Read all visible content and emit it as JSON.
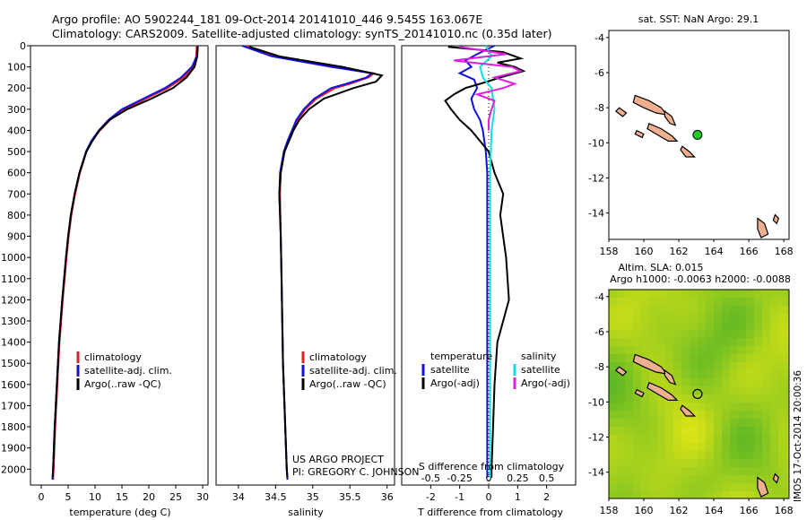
{
  "header": {
    "line1": "Argo profile: AO 5902244_181 09-Oct-2014 20141010_446 9.545S 163.067E",
    "line2": "Climatology: CARS2009. Satellite-adjusted climatology: synTS_20141010.nc (0.35d later)"
  },
  "footer": {
    "project": "US ARGO PROJECT",
    "pi": "PI: GREGORY C. JOHNSON"
  },
  "side_label": "IMOS 17-Oct-2014 20:00:36",
  "colors": {
    "clim": "#e02020",
    "sat": "#1010e0",
    "argo": "#000000",
    "sat_s": "#10e0e0",
    "argo_s": "#e020e0",
    "map_land": "#f0b090",
    "map_marker": "#22cc22"
  },
  "chart_data": [
    {
      "type": "line",
      "id": "temperature",
      "title": "",
      "xlabel": "temperature (deg C)",
      "ylabel": "",
      "xlim": [
        -2,
        31
      ],
      "ylim": [
        2075,
        0
      ],
      "xticks": [
        0,
        5,
        10,
        15,
        20,
        25,
        30
      ],
      "yticks": [
        0,
        100,
        200,
        300,
        400,
        500,
        600,
        700,
        800,
        900,
        1000,
        1100,
        1200,
        1300,
        1400,
        1500,
        1600,
        1700,
        1800,
        1900,
        2000
      ],
      "legend": [
        "climatology",
        "satellite-adj. clim.",
        "Argo(..raw -QC)"
      ],
      "series": [
        {
          "name": "climatology",
          "color": "#e02020",
          "y": [
            0,
            50,
            100,
            150,
            200,
            250,
            300,
            350,
            400,
            450,
            500,
            600,
            700,
            800,
            900,
            1000,
            1200,
            1400,
            1600,
            1800,
            2000,
            2050
          ],
          "x": [
            28.9,
            28.8,
            28.2,
            26.5,
            23.5,
            19.5,
            15.5,
            12.8,
            10.9,
            9.4,
            8.4,
            7.2,
            6.3,
            5.6,
            5.1,
            4.7,
            4.0,
            3.4,
            3.0,
            2.6,
            2.3,
            2.2
          ]
        },
        {
          "name": "satellite-adj. clim.",
          "color": "#1010e0",
          "y": [
            0,
            50,
            100,
            150,
            200,
            250,
            300,
            350,
            400,
            450,
            500,
            600,
            700,
            800,
            900,
            1000,
            1200,
            1400,
            1600,
            1800,
            2000,
            2050
          ],
          "x": [
            29.1,
            28.9,
            28.0,
            26.0,
            23.0,
            19.0,
            15.0,
            12.5,
            10.7,
            9.3,
            8.3,
            7.1,
            6.2,
            5.5,
            5.0,
            4.6,
            3.9,
            3.3,
            2.9,
            2.5,
            2.2,
            2.1
          ]
        },
        {
          "name": "Argo(..raw -QC)",
          "color": "#000000",
          "y": [
            5,
            50,
            100,
            150,
            200,
            250,
            300,
            350,
            400,
            450,
            500,
            600,
            700,
            800,
            900,
            1000,
            1200,
            1400,
            1600,
            1800,
            2000,
            2040
          ],
          "x": [
            29.1,
            29.0,
            28.5,
            27.0,
            24.5,
            20.5,
            16.0,
            12.7,
            10.8,
            9.5,
            8.4,
            7.1,
            6.2,
            5.5,
            5.0,
            4.6,
            3.9,
            3.3,
            2.9,
            2.5,
            2.2,
            2.1
          ]
        }
      ]
    },
    {
      "type": "line",
      "id": "salinity",
      "title": "",
      "xlabel": "salinity",
      "ylabel": "",
      "xlim": [
        33.7,
        36.1
      ],
      "ylim": [
        2075,
        0
      ],
      "xticks": [
        34,
        34.5,
        35,
        35.5,
        36
      ],
      "xtick_labels": [
        "34",
        "34.5",
        "35",
        "35.5",
        "36"
      ],
      "legend": [
        "climatology",
        "satellite-adj. clim.",
        "Argo(..raw -QC)"
      ],
      "series": [
        {
          "name": "climatology",
          "color": "#e02020",
          "y": [
            0,
            50,
            100,
            130,
            150,
            180,
            200,
            250,
            300,
            350,
            400,
            450,
            500,
            600,
            700,
            900,
            1100,
            1500,
            2000,
            2050
          ],
          "x": [
            34.1,
            34.5,
            35.3,
            35.82,
            35.75,
            35.5,
            35.3,
            35.05,
            34.9,
            34.8,
            34.74,
            34.68,
            34.62,
            34.57,
            34.56,
            34.57,
            34.58,
            34.6,
            34.65,
            34.66
          ]
        },
        {
          "name": "satellite-adj. clim.",
          "color": "#1010e0",
          "y": [
            0,
            50,
            100,
            130,
            150,
            180,
            200,
            250,
            300,
            350,
            400,
            450,
            500,
            600,
            700,
            900,
            1100,
            1500,
            2000,
            2050
          ],
          "x": [
            34.05,
            34.45,
            35.25,
            35.8,
            35.72,
            35.45,
            35.25,
            35.02,
            34.88,
            34.78,
            34.72,
            34.66,
            34.61,
            34.56,
            34.55,
            34.57,
            34.58,
            34.6,
            34.65,
            34.66
          ]
        },
        {
          "name": "Argo(..raw -QC)",
          "color": "#000000",
          "y": [
            5,
            50,
            100,
            140,
            170,
            200,
            250,
            300,
            350,
            400,
            450,
            500,
            600,
            700,
            900,
            1100,
            1500,
            2000,
            2040
          ],
          "x": [
            34.15,
            34.55,
            35.4,
            35.93,
            35.85,
            35.55,
            35.15,
            34.95,
            34.82,
            34.74,
            34.68,
            34.62,
            34.57,
            34.55,
            34.57,
            34.58,
            34.6,
            34.65,
            34.66
          ]
        }
      ]
    },
    {
      "type": "line",
      "id": "differences",
      "title": "",
      "xlabel": "T difference from climatology",
      "xlabel_top": "S difference from climatology",
      "xlim": [
        -3,
        3
      ],
      "ylim": [
        2075,
        0
      ],
      "xticks": [
        -2,
        -1,
        0,
        1,
        2
      ],
      "xticks_top": [
        -0.5,
        -0.25,
        0,
        0.25,
        0.5
      ],
      "legend_temperature": {
        "title": "temperature",
        "items": [
          "satellite",
          "Argo(-adj)"
        ]
      },
      "legend_salinity": {
        "title": "salinity",
        "items": [
          "satellite",
          "Argo(-adj)"
        ]
      },
      "series": [
        {
          "name": "T satellite",
          "color": "#1010e0",
          "y": [
            0,
            40,
            70,
            100,
            130,
            160,
            200,
            250,
            300,
            350,
            400,
            500,
            600,
            800,
            1000,
            1500,
            2000,
            2040
          ],
          "x": [
            0.2,
            -0.4,
            -0.8,
            -0.6,
            -1.0,
            -0.5,
            -0.4,
            -0.6,
            -0.5,
            -0.3,
            -0.2,
            -0.1,
            -0.05,
            -0.05,
            -0.05,
            -0.05,
            -0.05,
            -0.05
          ]
        },
        {
          "name": "T Argo(-adj)",
          "color": "#000000",
          "y": [
            5,
            30,
            60,
            80,
            100,
            120,
            150,
            180,
            200,
            230,
            260,
            300,
            350,
            400,
            450,
            500,
            600,
            700,
            800,
            1000,
            1200,
            1400,
            1600,
            1800,
            2000,
            2040
          ],
          "x": [
            -1.4,
            0.5,
            1.1,
            0.3,
            0.9,
            1.2,
            0.4,
            -0.3,
            -0.8,
            -1.2,
            -1.5,
            -1.3,
            -1.0,
            -0.6,
            -0.3,
            0.0,
            0.2,
            0.5,
            0.4,
            0.6,
            0.7,
            0.3,
            0.2,
            0.15,
            0.1,
            0.1
          ]
        },
        {
          "name": "S satellite",
          "color": "#10e0e0",
          "y": [
            0,
            50,
            100,
            150,
            200,
            300,
            400,
            600,
            800,
            1000,
            1500,
            2000,
            2040
          ],
          "x": [
            -0.1,
            0.1,
            -0.3,
            -0.2,
            0.1,
            0.2,
            0.1,
            0.05,
            0.05,
            0.05,
            0.05,
            0.05,
            0.05
          ]
        },
        {
          "name": "S Argo(-adj)",
          "color": "#e020e0",
          "y": [
            5,
            40,
            70,
            100,
            120,
            150,
            180,
            200,
            230,
            260,
            300,
            350,
            400
          ],
          "x": [
            -1.0,
            0.6,
            -1.2,
            0.8,
            1.1,
            0.2,
            0.9,
            0.5,
            -0.4,
            0.2,
            0.1,
            0.0,
            0.0
          ]
        }
      ]
    },
    {
      "type": "map",
      "id": "sst-map",
      "title": "sat. SST: NaN Argo: 29.1",
      "xlim": [
        158,
        168.3
      ],
      "ylim": [
        -15.5,
        -3.6
      ],
      "xticks": [
        158,
        160,
        162,
        164,
        166,
        168
      ],
      "yticks": [
        -4,
        -6,
        -8,
        -10,
        -12,
        -14
      ],
      "marker": {
        "lon": 163.067,
        "lat": -9.545
      }
    },
    {
      "type": "heatmap",
      "id": "sla-map",
      "title": "Altim. SLA: 0.015",
      "subtitle": "Argo h1000: -0.0063 h2000: -0.0088",
      "xlim": [
        158,
        168.3
      ],
      "ylim": [
        -15.5,
        -3.6
      ],
      "xticks": [
        158,
        160,
        162,
        164,
        166,
        168
      ],
      "yticks": [
        -4,
        -6,
        -8,
        -10,
        -12,
        -14
      ],
      "marker": {
        "lon": 163.067,
        "lat": -9.545
      }
    }
  ]
}
